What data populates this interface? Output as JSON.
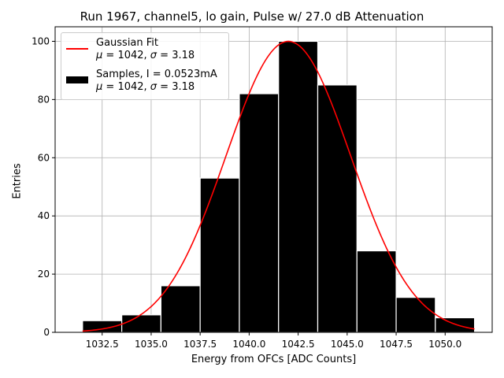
{
  "chart_data": {
    "type": "bar",
    "title": "Run 1967, channel5, lo gain, Pulse w/ 27.0 dB Attenuation",
    "xlabel": "Energy from OFCs [ADC Counts]",
    "ylabel": "Entries",
    "xlim": [
      1030.1,
      1052.4
    ],
    "ylim": [
      0,
      105
    ],
    "grid": true,
    "legend_position": "top-left",
    "bin_edges": [
      1031.5,
      1033.5,
      1035.5,
      1037.5,
      1039.5,
      1041.5,
      1043.5,
      1045.5,
      1047.5,
      1049.5,
      1051.5
    ],
    "values": [
      4,
      6,
      16,
      53,
      82,
      100,
      85,
      28,
      12,
      5
    ],
    "x_ticks": [
      "1032.5",
      "1035.0",
      "1037.5",
      "1040.0",
      "1042.5",
      "1045.0",
      "1047.5",
      "1050.0"
    ],
    "x_tick_values": [
      1032.5,
      1035.0,
      1037.5,
      1040.0,
      1042.5,
      1045.0,
      1047.5,
      1050.0
    ],
    "y_ticks": [
      "0",
      "20",
      "40",
      "60",
      "80",
      "100"
    ],
    "y_tick_values": [
      0,
      20,
      40,
      60,
      80,
      100
    ],
    "fit": {
      "type": "gaussian",
      "mu": 1042,
      "sigma": 3.18,
      "amplitude": 100,
      "color": "#ff0000"
    },
    "bar_color": "#000000",
    "series": [
      {
        "name": "Gaussian Fit",
        "stat_line": "= 1042, ",
        "sigma_line": " = 3.18"
      },
      {
        "name": "Samples, I = 0.0523mA",
        "stat_line": "= 1042, ",
        "sigma_line": " = 3.18"
      }
    ]
  }
}
